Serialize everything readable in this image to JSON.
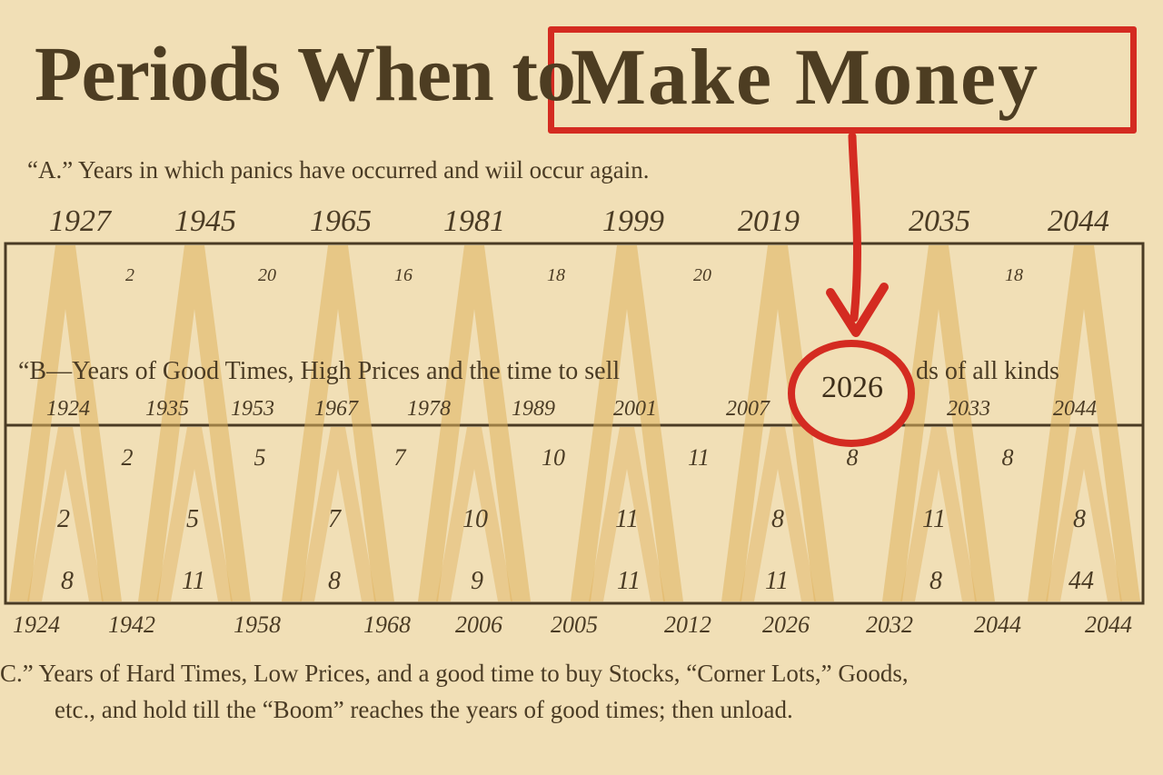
{
  "title_prefix": "Periods When to",
  "title_highlight": "Make Money",
  "sections": {
    "a": "“A.” Years in which panics have occurred and wiil occur again.",
    "b_left": "“B—Years of Good Times, High Prices and the time to sell",
    "b_right": "ds of all kinds",
    "c_line1": "C.” Years of Hard Times, Low Prices, and a good time to buy Stocks, “Corner Lots,” Goods,",
    "c_line2": "etc., and hold till the “Boom” reaches the years of good times; then unload."
  },
  "panic_years": [
    "1927",
    "1945",
    "1965",
    "1981",
    "1999",
    "2019",
    "2035",
    "2044"
  ],
  "interval_top": [
    "2",
    "20",
    "16",
    "18",
    "20",
    "18"
  ],
  "good_years": [
    "1924",
    "1935",
    "1953",
    "1967",
    "1978",
    "1989",
    "2001",
    "2007",
    "2033",
    "2044"
  ],
  "interval_mid": [
    "2",
    "5",
    "7",
    "10",
    "11",
    "8",
    "8"
  ],
  "inner_upper": [
    "2",
    "5",
    "7",
    "10",
    "11",
    "8",
    "11",
    "8"
  ],
  "inner_lower": [
    "8",
    "11",
    "8",
    "9",
    "11",
    "11",
    "8",
    "44"
  ],
  "hard_years": [
    "1924",
    "1942",
    "1958",
    "1968",
    "2006",
    "2005",
    "2012",
    "2026",
    "2032",
    "2044",
    "2044"
  ],
  "highlight_year": "2026",
  "colors": {
    "paper": "#f1dfb6",
    "ink": "#4a3b24",
    "triangle": "#dfb25e",
    "highlight": "#d42b21"
  }
}
